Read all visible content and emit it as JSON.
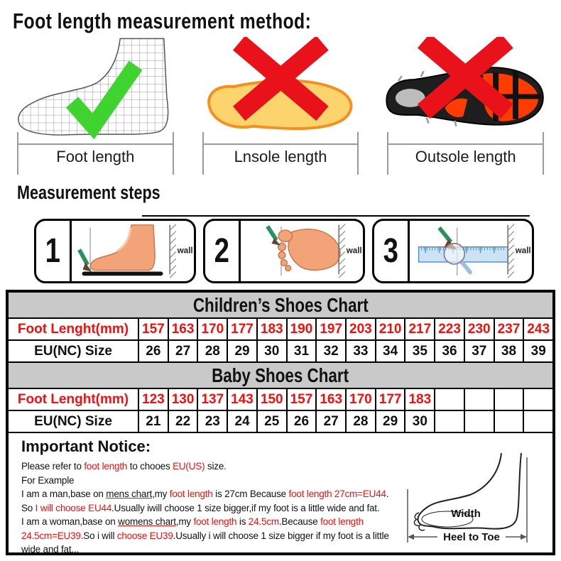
{
  "title": "Foot length measurement method:",
  "methods": {
    "items": [
      {
        "label": "Foot length",
        "mark": "check"
      },
      {
        "label": "Lnsole length",
        "mark": "cross"
      },
      {
        "label": "Outsole length",
        "mark": "cross"
      }
    ]
  },
  "steps": {
    "title": "Measurement steps",
    "wall_label": "wall",
    "items": [
      {
        "number": "1"
      },
      {
        "number": "2"
      },
      {
        "number": "3"
      }
    ]
  },
  "tables": {
    "children": {
      "title": "Children’s Shoes Chart",
      "row1_label": "Foot Lenght(mm)",
      "row1_values": [
        "157",
        "163",
        "170",
        "177",
        "183",
        "190",
        "197",
        "203",
        "210",
        "217",
        "223",
        "230",
        "237",
        "243"
      ],
      "row2_label": "EU(NC) Size",
      "row2_values": [
        "26",
        "27",
        "28",
        "29",
        "30",
        "31",
        "32",
        "33",
        "34",
        "35",
        "36",
        "37",
        "38",
        "39"
      ]
    },
    "baby": {
      "title": "Baby Shoes Chart",
      "row1_label": "Foot Lenght(mm)",
      "row1_values": [
        "123",
        "130",
        "137",
        "143",
        "150",
        "157",
        "163",
        "170",
        "177",
        "183",
        "",
        "",
        "",
        ""
      ],
      "row2_label": "EU(NC) Size",
      "row2_values": [
        "21",
        "22",
        "23",
        "24",
        "25",
        "26",
        "27",
        "28",
        "29",
        "30",
        "",
        "",
        "",
        ""
      ]
    }
  },
  "notice": {
    "title": "Important Notice:",
    "lines": [
      {
        "segs": [
          {
            "t": "Please refer to "
          },
          {
            "t": "foot length",
            "c": "c-red"
          },
          {
            "t": " to chooes "
          },
          {
            "t": "EU(US)",
            "c": "c-red"
          },
          {
            "t": " size."
          }
        ]
      },
      {
        "segs": [
          {
            "t": "For Example"
          }
        ]
      },
      {
        "segs": [
          {
            "t": "I am a man,base on "
          },
          {
            "t": "mens chart",
            "u": 1
          },
          {
            "t": ",my "
          },
          {
            "t": "foot length",
            "c": "c-red"
          },
          {
            "t": " is 27cm Because "
          },
          {
            "t": "foot length 27cm=EU44",
            "c": "c-red"
          },
          {
            "t": "."
          }
        ]
      },
      {
        "segs": [
          {
            "t": "So "
          },
          {
            "t": "I will choose EU44",
            "c": "c-red"
          },
          {
            "t": ".Usually iwill choose 1 size bigger,if my foot is a little wide and fat."
          }
        ]
      },
      {
        "segs": [
          {
            "t": "I am a woman,base on "
          },
          {
            "t": "womens chart",
            "u": 1
          },
          {
            "t": ",my "
          },
          {
            "t": "foot length",
            "c": "c-red"
          },
          {
            "t": " is "
          },
          {
            "t": "24.5cm",
            "c": "c-red"
          },
          {
            "t": ".Because "
          },
          {
            "t": "foot length",
            "c": "c-red"
          }
        ]
      },
      {
        "segs": [
          {
            "t": "24.5cm=EU39",
            "c": "c-red"
          },
          {
            "t": ".So i will "
          },
          {
            "t": "choose EU39",
            "c": "c-red"
          },
          {
            "t": ".Usually i will choose 1 size bigger if my foot is a little"
          }
        ]
      },
      {
        "segs": [
          {
            "t": "wide and fat..."
          }
        ]
      }
    ],
    "diagram": {
      "width_label": "Width",
      "heel_to_toe_label": "Heel to Toe"
    }
  },
  "colors": {
    "c-red": "#f2100d",
    "c-cross": "#e9111a",
    "c-check": "#3ed32e",
    "c-pencil": "#2e8f5e",
    "c-skin": "#f2a478",
    "c-skin-edge": "#c6744b",
    "c-insole": "#fdd36d",
    "c-insole-edge": "#f49022",
    "c-orange": "#ff3c00",
    "c-ruler": "#cbe3f5",
    "c-ruler-edge": "#4f90c2",
    "c-header": "#c9c9c9"
  }
}
